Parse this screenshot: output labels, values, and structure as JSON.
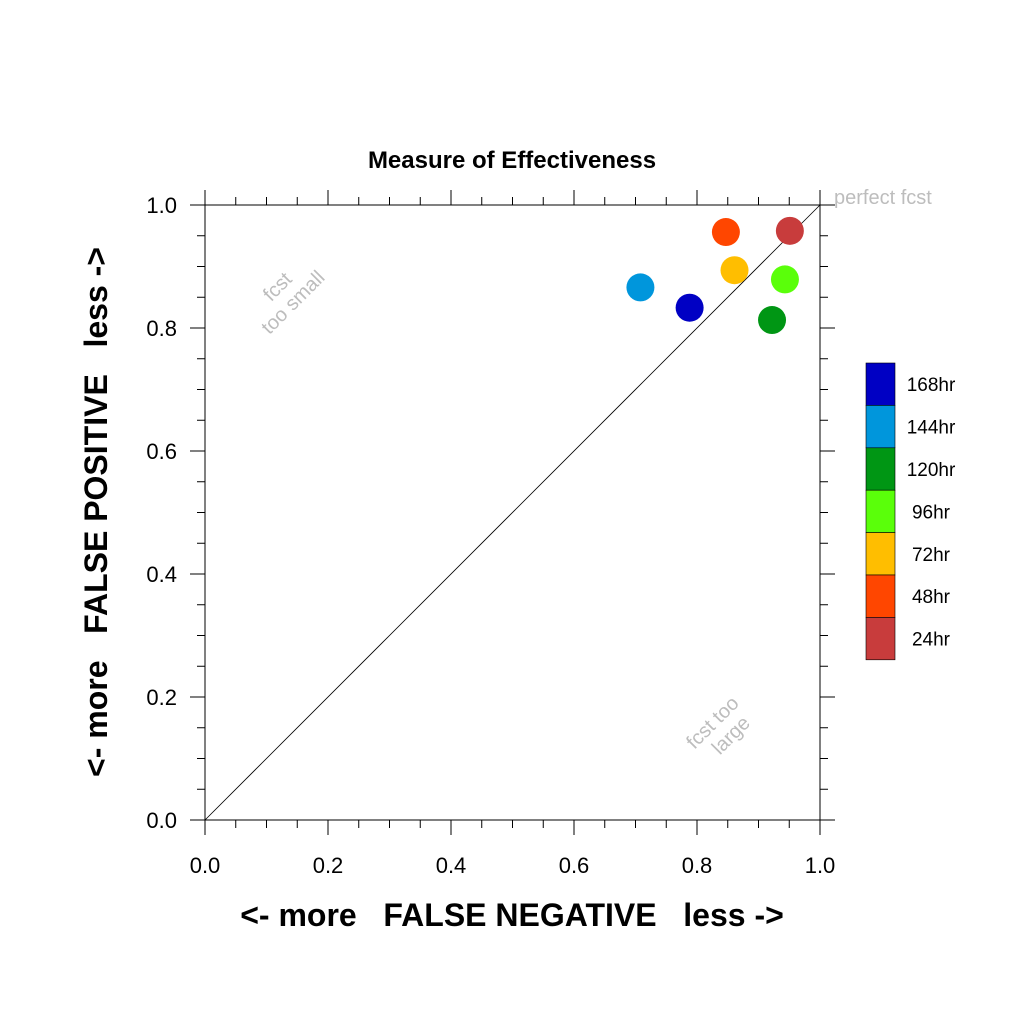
{
  "chart_data": {
    "type": "scatter",
    "title": "Measure of Effectiveness",
    "xlabel": "<- more   FALSE NEGATIVE   less ->",
    "ylabel": "<- more   FALSE POSITIVE   less ->",
    "xlim": [
      0,
      1
    ],
    "ylim": [
      0,
      1
    ],
    "xticks": [
      "0.0",
      "0.2",
      "0.4",
      "0.6",
      "0.8",
      "1.0"
    ],
    "yticks": [
      "0.0",
      "0.2",
      "0.4",
      "0.6",
      "0.8",
      "1.0"
    ],
    "grid": false,
    "legend_position": "right",
    "reference_line": {
      "from": [
        0,
        0
      ],
      "to": [
        1,
        1
      ]
    },
    "annotations": {
      "perfect": "perfect fcst",
      "small_line1": "fcst",
      "small_line2": "too small",
      "large_line1": "fcst too",
      "large_line2": "large"
    },
    "series": [
      {
        "name": "168hr",
        "color": "#0000c4",
        "x": 0.788,
        "y": 0.833
      },
      {
        "name": "144hr",
        "color": "#0096dc",
        "x": 0.708,
        "y": 0.866
      },
      {
        "name": "120hr",
        "color": "#009614",
        "x": 0.922,
        "y": 0.813
      },
      {
        "name": "96hr",
        "color": "#5aff0a",
        "x": 0.943,
        "y": 0.879
      },
      {
        "name": "72hr",
        "color": "#ffbe00",
        "x": 0.861,
        "y": 0.894
      },
      {
        "name": "48hr",
        "color": "#ff4600",
        "x": 0.847,
        "y": 0.956
      },
      {
        "name": "24hr",
        "color": "#c83c3c",
        "x": 0.951,
        "y": 0.958
      }
    ]
  }
}
